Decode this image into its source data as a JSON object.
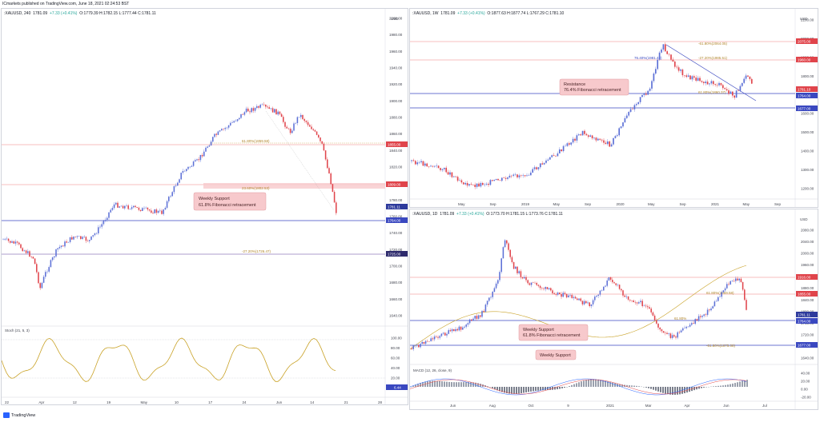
{
  "header": {
    "publisher": "ICmarkets published on TradingView.com, June 18, 2021 02:24:53 BST"
  },
  "footer": {
    "brand": "TradingView"
  },
  "panels": {
    "h4": {
      "symbol": ":XAUUSD, 240",
      "price": "1781.09",
      "change": "+7.33 (+0.41%)",
      "ohlc": "O:1779.39 H:1782.15 L:1777.44 C:1781.11",
      "currency": "USD",
      "price_labels": [
        "2000.00",
        "1980.00",
        "1960.00",
        "1940.00",
        "1920.00",
        "1900.00",
        "1880.00",
        "1860.00",
        "1840.00",
        "1820.00",
        "1800.00",
        "1780.00",
        "1760.00",
        "1740.00",
        "1720.00",
        "1700.00",
        "1680.00",
        "1660.00",
        "1640.00"
      ],
      "tags": {
        "a": "1855.00",
        "b": "1809.00",
        "c": "1781.11",
        "d": "1764.00",
        "e": "1725.00"
      },
      "fibs": {
        "f1": "61.80%(1859.58)",
        "f2": "23.60%(1802.53)",
        "f3": "-27.20%(1726.47)"
      },
      "note": {
        "line1": "Weekly Support",
        "line2": "61.8% Fibonacci retracement"
      },
      "time_labels": [
        "22",
        "Apr",
        "12",
        "19",
        "May",
        "10",
        "17",
        "24",
        "Jun",
        "14",
        "21",
        "28"
      ],
      "stoch": {
        "legend": "Stoch (21, 5, 3)",
        "labels": [
          "100.00",
          "80.00",
          "60.00",
          "40.00",
          "20.00"
        ],
        "value": "6.44"
      }
    },
    "w1": {
      "symbol": ":XAUUSD, 1W",
      "price": "1781.09",
      "change": "+7.33 (+0.41%)",
      "ohlc": "O:1877.63 H:1877.74 L:1767.29 C:1781.10",
      "currency": "USD",
      "price_labels": [
        "2100.00",
        "2000.00",
        "1900.00",
        "1800.00",
        "1700.00",
        "1600.00",
        "1500.00",
        "1400.00",
        "1300.00",
        "1200.00"
      ],
      "tags": {
        "a": "2075.00",
        "b": "1960.00",
        "c": "1781.10",
        "d": "1764.00",
        "e": "1677.00"
      },
      "fibs": {
        "f1": "-61.80%(2064.05)",
        "f2": "-27.20%(1985.51)",
        "f3": "76.40%(1981.43)",
        "f4": "61.80%(1860.37)"
      },
      "note": {
        "line1": "Resistance",
        "line2": "76.4% Fibonacci retracement"
      },
      "time_labels": [
        "May",
        "Sep",
        "2019",
        "May",
        "Sep",
        "2020",
        "May",
        "Sep",
        "2021",
        "May",
        "Sep"
      ]
    },
    "d1": {
      "symbol": ":XAUUSD, 1D",
      "price": "1781.09",
      "change": "+7.33 (+0.41%)",
      "ohlc": "O:1773.70 H:1781.15 L:1773.76 C:1781.11",
      "currency": "USD",
      "price_labels": [
        "2080.00",
        "2040.00",
        "2000.00",
        "1960.00",
        "1920.00",
        "1880.00",
        "1840.00",
        "1800.00",
        "1760.00",
        "1720.00",
        "1680.00",
        "1640.00"
      ],
      "tags": {
        "a": "1916.00",
        "b": "1855.00",
        "c": "1781.11",
        "d": "1764.00",
        "e": "1677.00"
      },
      "fibs": {
        "f1": "61.80%(1859.58)",
        "f2": "61.80%",
        "f3": "-61.80%(1675.08)"
      },
      "note": {
        "line1": "Weekly Support",
        "line2": "61.8% Fibonacci retracement"
      },
      "note2": "Weekly Support",
      "time_labels": [
        "Jun",
        "Aug",
        "Oct",
        "9",
        "2021",
        "Mar",
        "Apr",
        "Jun",
        "Jul"
      ],
      "macd": {
        "legend": "MACD (12, 26, close, 9)",
        "labels": [
          "40.00",
          "20.00",
          "0.00",
          "-20.00"
        ]
      }
    }
  },
  "colors": {
    "up": "#5b6fd6",
    "down": "#e0444b",
    "res": "#f08080",
    "sup": "#3a48c0",
    "fib": "#c99c3a",
    "stoch": "#c9a227",
    "ma": "#c9a227",
    "notebg": "#f7c9cc"
  }
}
